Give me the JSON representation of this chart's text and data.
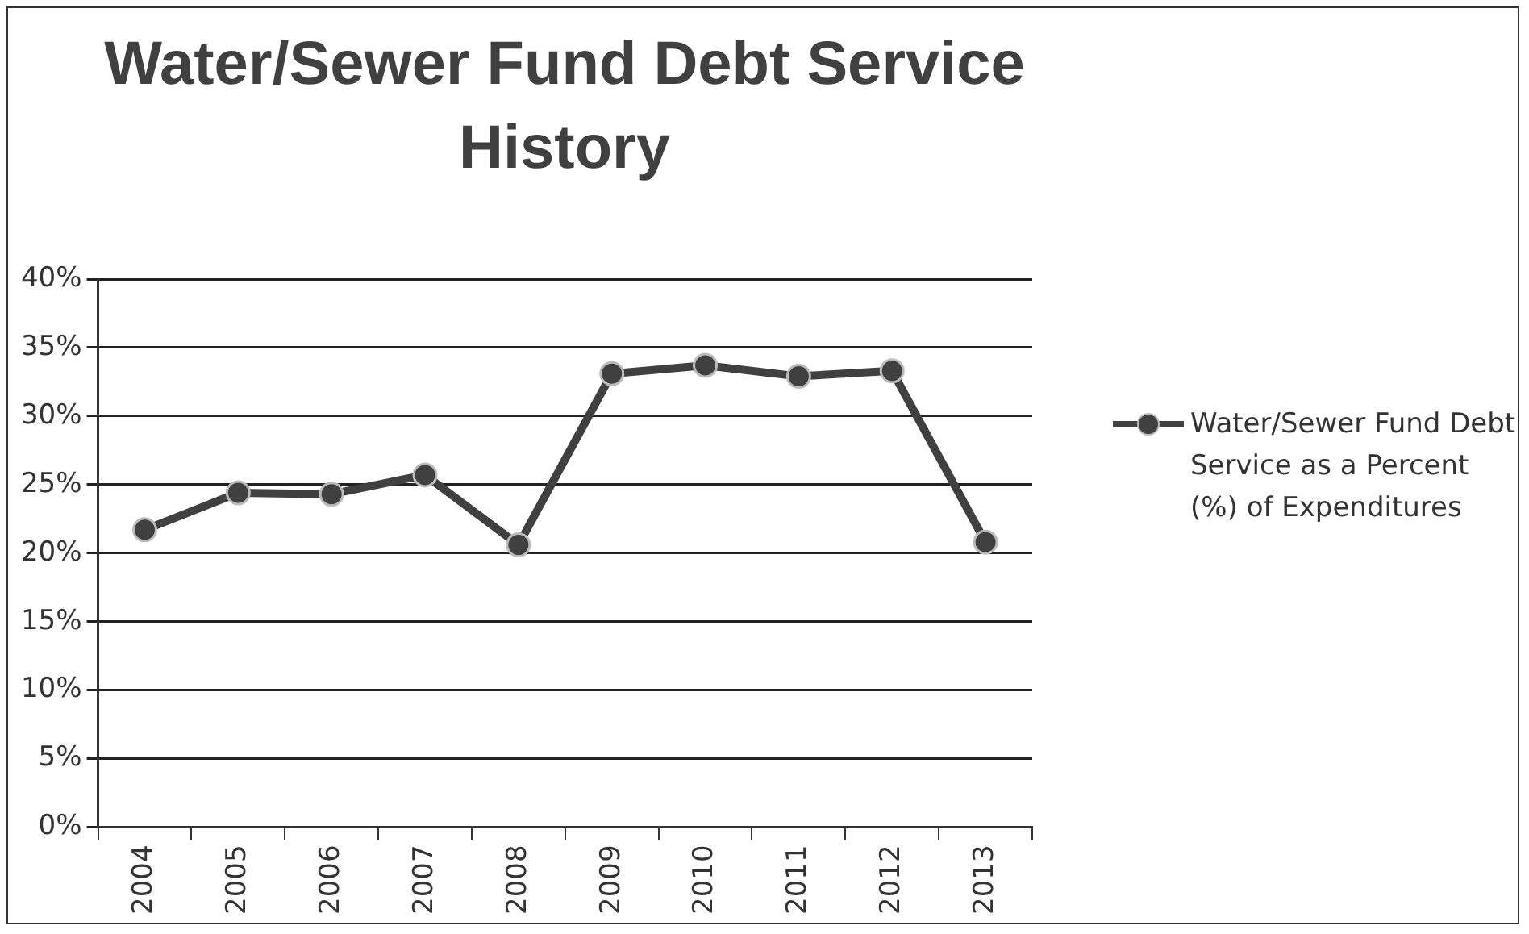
{
  "chart_data": {
    "type": "line",
    "title": "Water/Sewer Fund Debt Service History",
    "categories": [
      "2004",
      "2005",
      "2006",
      "2007",
      "2008",
      "2009",
      "2010",
      "2011",
      "2012",
      "2013"
    ],
    "series": [
      {
        "name": "Water/Sewer Fund Debt Service as a Percent (%) of Expenditures",
        "color": "#404040",
        "values": [
          21.7,
          24.4,
          24.3,
          25.7,
          20.6,
          33.1,
          33.7,
          32.9,
          33.3,
          20.8
        ]
      }
    ],
    "ylim": [
      0,
      40
    ],
    "yticks": [
      {
        "value": 0,
        "label": "0%"
      },
      {
        "value": 5,
        "label": "5%"
      },
      {
        "value": 10,
        "label": "10%"
      },
      {
        "value": 15,
        "label": "15%"
      },
      {
        "value": 20,
        "label": "20%"
      },
      {
        "value": 25,
        "label": "25%"
      },
      {
        "value": 30,
        "label": "30%"
      },
      {
        "value": 35,
        "label": "35%"
      },
      {
        "value": 40,
        "label": "40%"
      }
    ],
    "grid": "y",
    "legend": "right",
    "marker": "circle",
    "line_style": "solid"
  }
}
